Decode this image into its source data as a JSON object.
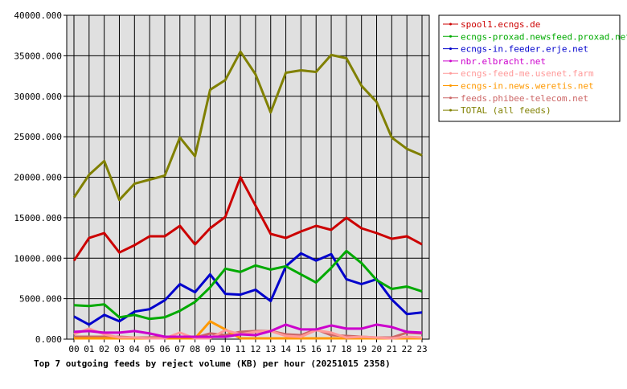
{
  "chart_data": {
    "type": "line",
    "title": "Top 7 outgoing feeds by reject volume (KB) per hour (20251015 2358)",
    "xlabel": "",
    "ylabel": "",
    "ylim": [
      0,
      40000
    ],
    "grid": true,
    "legend_position": "right",
    "x": [
      "00",
      "01",
      "02",
      "03",
      "04",
      "05",
      "06",
      "07",
      "08",
      "09",
      "10",
      "11",
      "12",
      "13",
      "14",
      "15",
      "16",
      "17",
      "18",
      "19",
      "20",
      "21",
      "22",
      "23"
    ],
    "y_ticks": [
      "0.000",
      "5000.000",
      "10000.000",
      "15000.000",
      "20000.000",
      "25000.000",
      "30000.000",
      "35000.000",
      "40000.000"
    ],
    "series": [
      {
        "name": "spool1.ecngs.de",
        "color": "#cc0000",
        "values": [
          9700,
          12500,
          13100,
          10700,
          11600,
          12700,
          12700,
          14000,
          11700,
          13700,
          15100,
          20000,
          16500,
          13000,
          12500,
          13300,
          14000,
          13500,
          15000,
          13700,
          13100,
          12400,
          12700,
          11700
        ]
      },
      {
        "name": "ecngs-proxad.newsfeed.proxad.net",
        "color": "#00aa00",
        "values": [
          4200,
          4100,
          4300,
          2700,
          3000,
          2500,
          2700,
          3500,
          4600,
          6400,
          8700,
          8300,
          9100,
          8600,
          9000,
          8000,
          7000,
          8800,
          10900,
          9400,
          7300,
          6200,
          6500,
          5900
        ]
      },
      {
        "name": "ecngs-in.feeder.erje.net",
        "color": "#0000cc",
        "values": [
          2800,
          1800,
          3000,
          2200,
          3400,
          3700,
          4800,
          6800,
          5800,
          8000,
          5600,
          5500,
          6100,
          4700,
          9000,
          10600,
          9700,
          10500,
          7400,
          6800,
          7400,
          4900,
          3100,
          3300
        ]
      },
      {
        "name": "nbr.elbracht.net",
        "color": "#cc00cc",
        "values": [
          900,
          1000,
          800,
          800,
          1000,
          700,
          300,
          300,
          300,
          300,
          300,
          600,
          500,
          1000,
          1800,
          1200,
          1200,
          1700,
          1300,
          1300,
          1800,
          1500,
          900,
          800
        ]
      },
      {
        "name": "ecngs-feed-me.usenet.farm",
        "color": "#ff9999",
        "values": [
          600,
          1300,
          600,
          200,
          200,
          100,
          100,
          800,
          100,
          100,
          1100,
          600,
          900,
          1000,
          400,
          300,
          1100,
          800,
          200,
          300,
          200,
          100,
          300,
          200
        ]
      },
      {
        "name": "ecngs-in.news.weretis.net",
        "color": "#ff9900",
        "values": [
          100,
          100,
          100,
          100,
          100,
          100,
          100,
          100,
          100,
          2200,
          1200,
          100,
          100,
          100,
          100,
          100,
          100,
          100,
          100,
          100,
          100,
          100,
          100,
          100
        ]
      },
      {
        "name": "feeds.phibee-telecom.net",
        "color": "#cc6666",
        "values": [
          300,
          300,
          300,
          300,
          200,
          200,
          300,
          300,
          200,
          700,
          500,
          900,
          1000,
          1000,
          600,
          500,
          1200,
          500,
          400,
          300,
          200,
          200,
          800,
          700
        ]
      },
      {
        "name": "TOTAL (all feeds)",
        "color": "#808000",
        "values": [
          17500,
          20300,
          22000,
          17200,
          19200,
          19700,
          20200,
          24900,
          22600,
          30800,
          32000,
          35500,
          32700,
          28000,
          32900,
          33200,
          33000,
          35100,
          34700,
          31300,
          29300,
          24900,
          23500,
          22700
        ]
      }
    ]
  }
}
